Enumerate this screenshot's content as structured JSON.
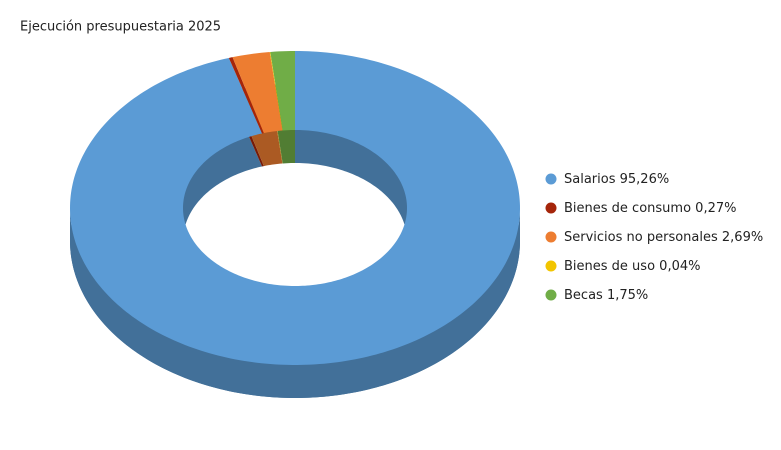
{
  "chart_data": {
    "type": "donut3d",
    "title": "Ejecución presupuestaria 2025",
    "categories": [
      "Salarios",
      "Bienes de consumo",
      "Servicios no personales",
      "Bienes de uso",
      "Becas"
    ],
    "values": [
      95.26,
      0.27,
      2.69,
      0.04,
      1.75
    ],
    "value_labels": [
      "95,26%",
      "0,27%",
      "2,69%",
      "0,04%",
      "1,75%"
    ],
    "colors": [
      "#5b9bd5",
      "#a5250a",
      "#ed7d31",
      "#f2c500",
      "#70ad47"
    ],
    "legend": "right"
  }
}
